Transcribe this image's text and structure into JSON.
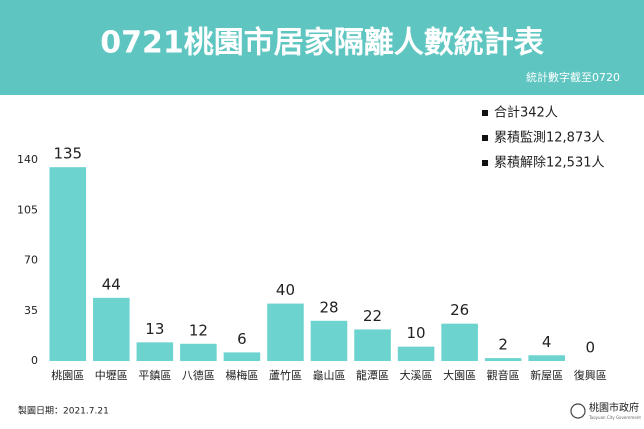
{
  "chart_data": {
    "type": "bar",
    "title": "0721桃園市居家隔離人數統計表",
    "subtitle": "統計數字截至0720",
    "categories": [
      "桃園區",
      "中壢區",
      "平鎮區",
      "八德區",
      "楊梅區",
      "蘆竹區",
      "龜山區",
      "龍潭區",
      "大溪區",
      "大園區",
      "觀音區",
      "新屋區",
      "復興區"
    ],
    "values": [
      135,
      44,
      13,
      12,
      6,
      40,
      28,
      22,
      10,
      26,
      2,
      4,
      0
    ],
    "color": "#6dd3cf",
    "ylim": [
      0,
      140
    ],
    "yticks": [
      0,
      35,
      70,
      105,
      140
    ],
    "notes": [
      "合計342人",
      "累積監測12,873人",
      "累積解除12,531人"
    ],
    "footer": "製圖日期：2021.7.21",
    "logo": "桃園市政府",
    "logo_sub": "Taoyuan City Government"
  }
}
